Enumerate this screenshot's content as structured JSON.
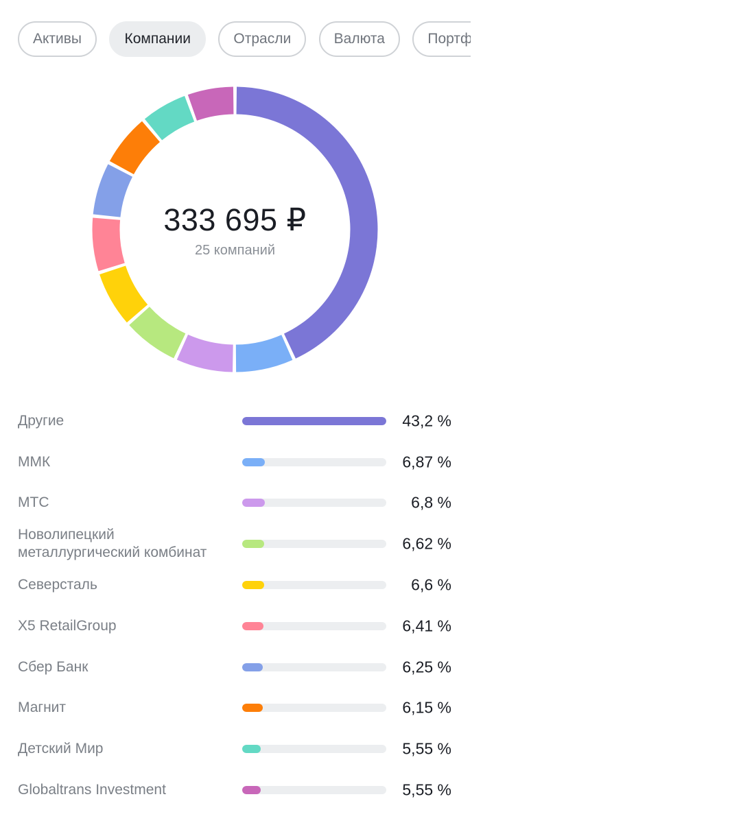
{
  "tabs": [
    {
      "label": "Активы",
      "active": false
    },
    {
      "label": "Компании",
      "active": true
    },
    {
      "label": "Отрасли",
      "active": false
    },
    {
      "label": "Валюта",
      "active": false
    },
    {
      "label": "Портфели",
      "active": false
    }
  ],
  "summary": {
    "total": "333 695 ₽",
    "count": "25 компаний"
  },
  "chart_data": {
    "type": "pie",
    "title": "Компании",
    "unit": "%",
    "series": [
      {
        "name": "Другие",
        "value": 43.2,
        "label": "43,2 %",
        "color": "#7b76d6"
      },
      {
        "name": "ММК",
        "value": 6.87,
        "label": "6,87 %",
        "color": "#7aaff7"
      },
      {
        "name": "МТС",
        "value": 6.8,
        "label": "6,8 %",
        "color": "#cc99ec"
      },
      {
        "name": "Новолипецкий металлургический комбинат",
        "value": 6.62,
        "label": "6,62 %",
        "color": "#b7e87f"
      },
      {
        "name": "Северсталь",
        "value": 6.6,
        "label": "6,6 %",
        "color": "#ffd20a"
      },
      {
        "name": "X5 RetailGroup",
        "value": 6.41,
        "label": "6,41 %",
        "color": "#ff8496"
      },
      {
        "name": "Сбер Банк",
        "value": 6.25,
        "label": "6,25 %",
        "color": "#84a0e8"
      },
      {
        "name": "Магнит",
        "value": 6.15,
        "label": "6,15 %",
        "color": "#fd7e08"
      },
      {
        "name": "Детский Мир",
        "value": 5.55,
        "label": "5,55 %",
        "color": "#63d9c4"
      },
      {
        "name": "Globaltrans Investment",
        "value": 5.55,
        "label": "5,55 %",
        "color": "#c867b9"
      }
    ]
  }
}
